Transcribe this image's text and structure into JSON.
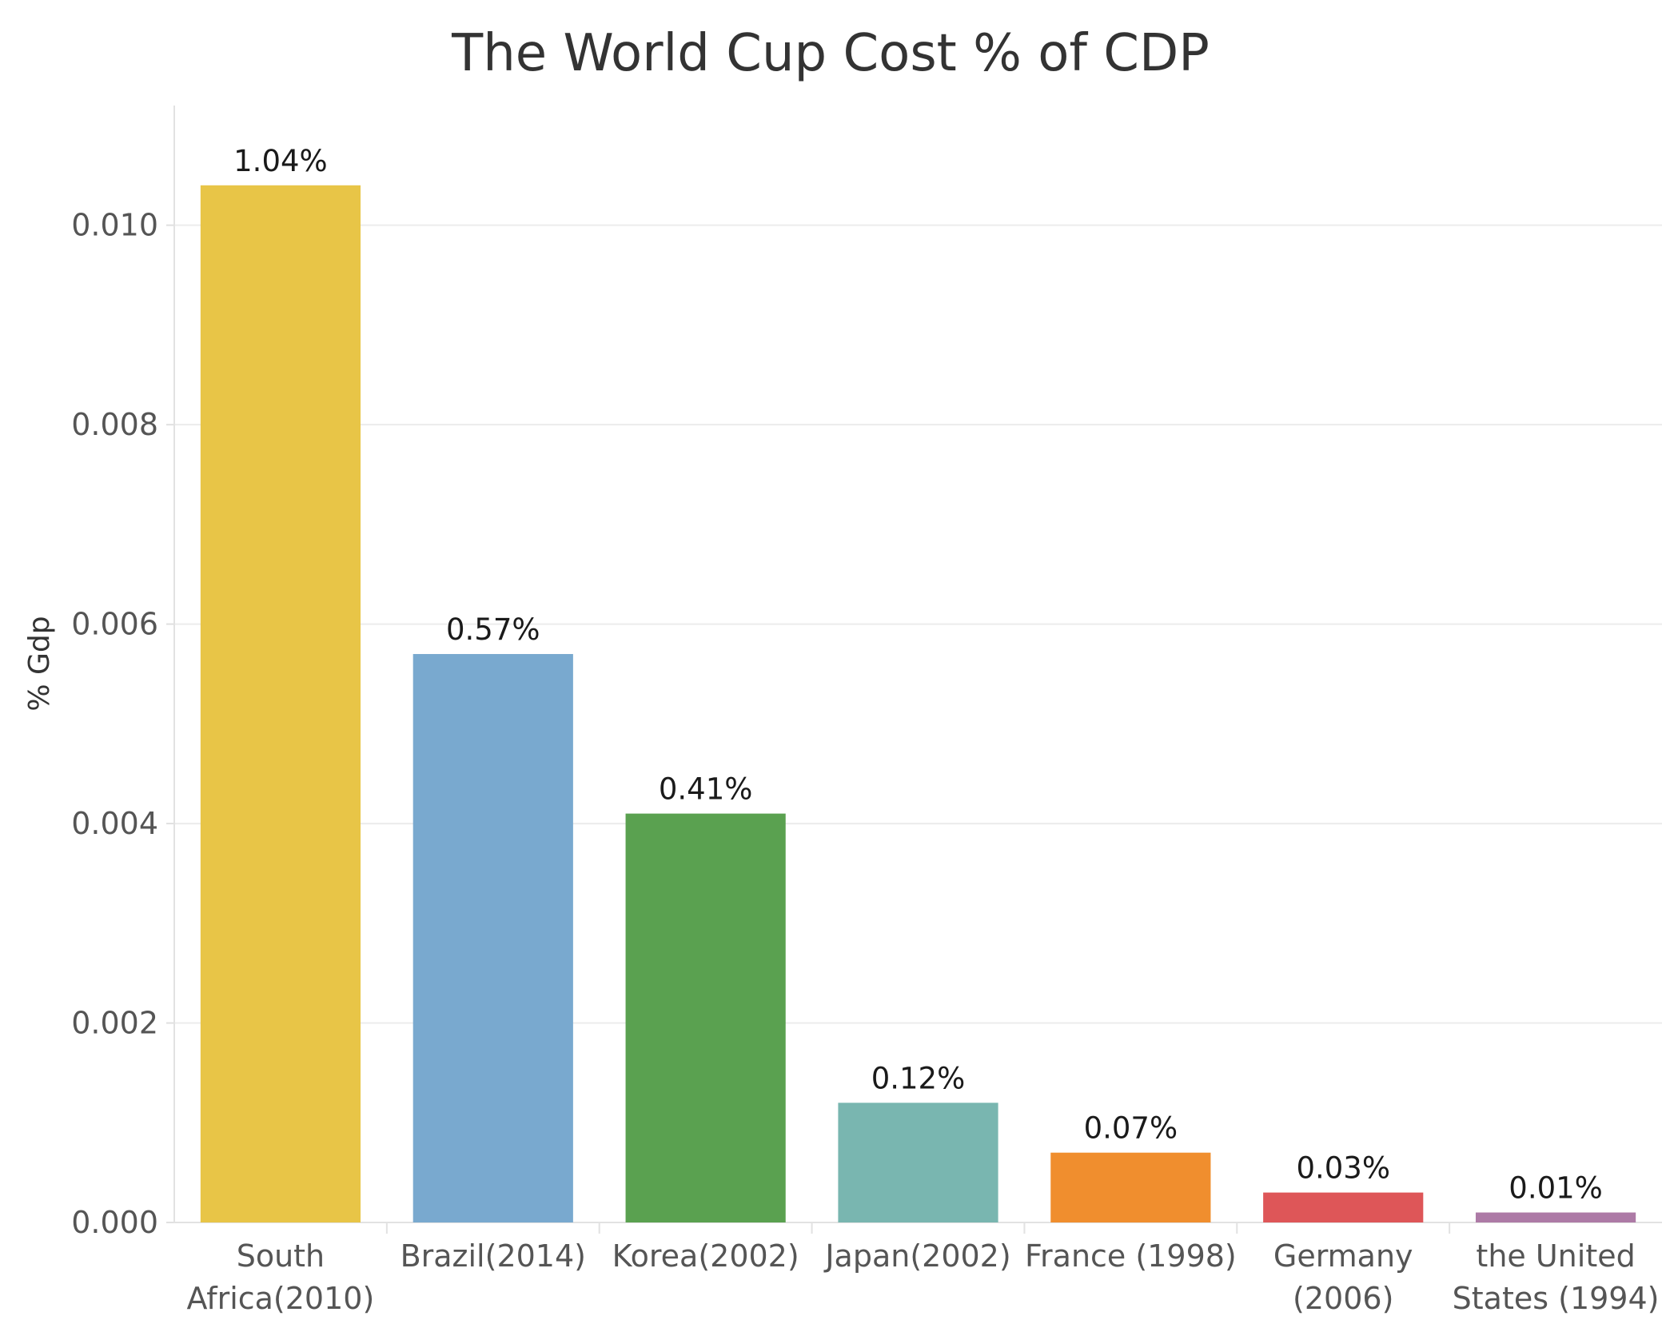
{
  "chart_data": {
    "type": "bar",
    "title": "The World Cup Cost % of CDP",
    "xlabel": "",
    "ylabel": "% Gdp",
    "ylim": [
      0,
      0.0112
    ],
    "yticks": [
      "0.000",
      "0.002",
      "0.004",
      "0.006",
      "0.008",
      "0.010"
    ],
    "ytick_values": [
      0,
      0.002,
      0.004,
      0.006,
      0.008,
      0.01
    ],
    "grid": true,
    "categories": [
      [
        "South",
        "Africa(2010)"
      ],
      [
        "Brazil(2014)"
      ],
      [
        "Korea(2002)"
      ],
      [
        "Japan(2002)"
      ],
      [
        "France (1998)"
      ],
      [
        "Germany",
        "(2006)"
      ],
      [
        "the United",
        "States (1994)"
      ]
    ],
    "values": [
      0.0104,
      0.0057,
      0.0041,
      0.0012,
      0.0007,
      0.0003,
      0.0001
    ],
    "data_labels": [
      "1.04%",
      "0.57%",
      "0.41%",
      "0.12%",
      "0.07%",
      "0.03%",
      "0.01%"
    ],
    "colors": [
      "#e8c547",
      "#79a9cf",
      "#5aa150",
      "#79b6b0",
      "#f08e2e",
      "#de5658",
      "#ad7aa6"
    ]
  }
}
